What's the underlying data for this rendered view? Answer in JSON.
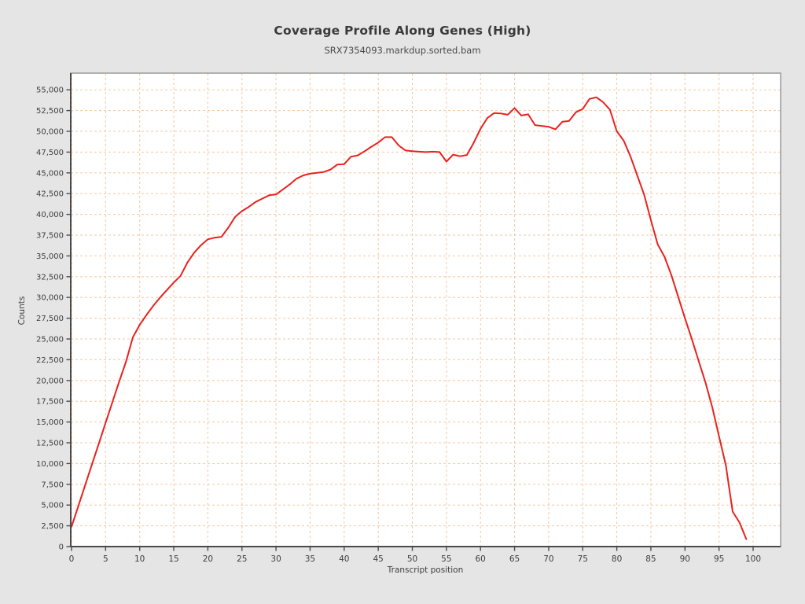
{
  "page": {
    "background_color": "#e5e5e6",
    "plot_background_color": "#ffffff"
  },
  "chart_data": {
    "type": "line",
    "title": "Coverage Profile Along Genes (High)",
    "subtitle": "SRX7354093.markdup.sorted.bam",
    "xlabel": "Transcript position",
    "ylabel": "Counts",
    "series_name": "coverage",
    "line_color": "#e8221e",
    "grid": true,
    "grid_color": "#f5c7a0",
    "legend": "none",
    "xlim": [
      0,
      104
    ],
    "ylim": [
      0,
      57000
    ],
    "x_ticks": [
      0,
      5,
      10,
      15,
      20,
      25,
      30,
      35,
      40,
      45,
      50,
      55,
      60,
      65,
      70,
      75,
      80,
      85,
      90,
      95,
      100
    ],
    "y_ticks": [
      0,
      2500,
      5000,
      7500,
      10000,
      12500,
      15000,
      17500,
      20000,
      22500,
      25000,
      27500,
      30000,
      32500,
      35000,
      37500,
      40000,
      42500,
      45000,
      47500,
      50000,
      52500,
      55000
    ],
    "y_tick_labels": [
      "0",
      "2,500",
      "5,000",
      "7,500",
      "10,000",
      "12,500",
      "15,000",
      "17,500",
      "20,000",
      "22,500",
      "25,000",
      "27,500",
      "30,000",
      "32,500",
      "35,000",
      "37,500",
      "40,000",
      "42,500",
      "45,000",
      "47,500",
      "50,000",
      "52,500",
      "55,000"
    ],
    "x": [
      0,
      1,
      2,
      3,
      4,
      5,
      6,
      7,
      8,
      9,
      10,
      11,
      12,
      13,
      14,
      15,
      16,
      17,
      18,
      19,
      20,
      21,
      22,
      23,
      24,
      25,
      26,
      27,
      28,
      29,
      30,
      31,
      32,
      33,
      34,
      35,
      36,
      37,
      38,
      39,
      40,
      41,
      42,
      43,
      44,
      45,
      46,
      47,
      48,
      49,
      50,
      51,
      52,
      53,
      54,
      55,
      56,
      57,
      58,
      59,
      60,
      61,
      62,
      63,
      64,
      65,
      66,
      67,
      68,
      69,
      70,
      71,
      72,
      73,
      74,
      75,
      76,
      77,
      78,
      79,
      80,
      81,
      82,
      83,
      84,
      85,
      86,
      87,
      88,
      89,
      90,
      91,
      92,
      93,
      94,
      95,
      96,
      97,
      98,
      99
    ],
    "values": [
      2400,
      4900,
      7400,
      9900,
      12400,
      14900,
      17400,
      19900,
      22300,
      25200,
      26700,
      27900,
      29000,
      30000,
      30900,
      31800,
      32600,
      34200,
      35400,
      36300,
      37000,
      37200,
      37300,
      38400,
      39700,
      40400,
      40900,
      41500,
      41900,
      42300,
      42400,
      43000,
      43600,
      44300,
      44700,
      44900,
      45000,
      45100,
      45400,
      46000,
      46050,
      46950,
      47100,
      47600,
      48150,
      48650,
      49300,
      49300,
      48300,
      47700,
      47600,
      47550,
      47500,
      47550,
      47500,
      46350,
      47200,
      47000,
      47150,
      48600,
      50300,
      51600,
      52200,
      52150,
      52000,
      52800,
      51900,
      52050,
      50750,
      50650,
      50550,
      50250,
      51150,
      51250,
      52300,
      52700,
      53900,
      54100,
      53500,
      52600,
      50000,
      48900,
      47000,
      44700,
      42400,
      39300,
      36400,
      34900,
      32700,
      30100,
      27500,
      25000,
      22400,
      19800,
      16800,
      13300,
      9800,
      4200,
      2900,
      900
    ]
  }
}
